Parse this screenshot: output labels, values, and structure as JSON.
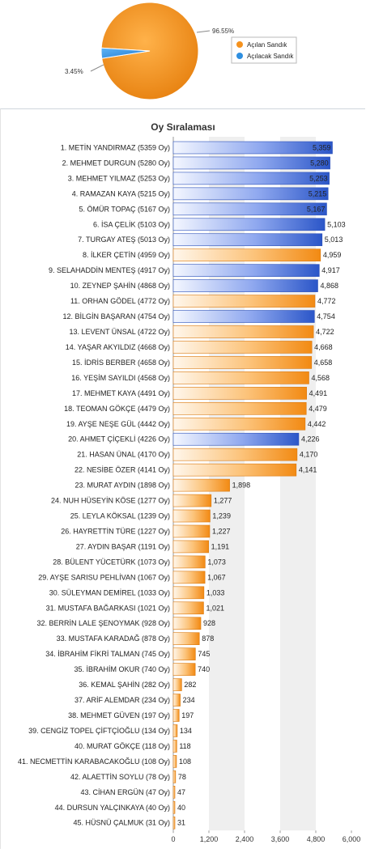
{
  "colors": {
    "opened": "#f5921e",
    "toOpen": "#3a6fd8",
    "grid_band": "#efefef",
    "text": "#222222"
  },
  "chart_data": [
    {
      "type": "pie",
      "slices": [
        {
          "name": "Açılan Sandık",
          "value": 96.55,
          "label": "96.55%",
          "color": "#f5921e"
        },
        {
          "name": "Açılacak Sandık",
          "value": 3.45,
          "label": "3.45%",
          "color": "#2f8fe0"
        }
      ],
      "legend": [
        "Açılan Sandık",
        "Açılacak Sandık"
      ],
      "legend_position": "right"
    },
    {
      "type": "bar",
      "orientation": "horizontal",
      "title": "Oy Sıralaması",
      "xlim": [
        0,
        6000
      ],
      "ticks": [
        "0",
        "1,200",
        "2,400",
        "3,600",
        "4,800",
        "6,000"
      ],
      "categories": [
        "1. METİN YANDIRMAZ (5359 Oy)",
        "2. MEHMET DURGUN (5280 Oy)",
        "3. MEHMET YILMAZ (5253 Oy)",
        "4. RAMAZAN KAYA (5215 Oy)",
        "5. ÖMÜR TOPAÇ (5167 Oy)",
        "6. İSA ÇELİK (5103 Oy)",
        "7. TURGAY ATEŞ (5013 Oy)",
        "8. İLKER ÇETİN (4959 Oy)",
        "9. SELAHADDİN MENTEŞ (4917 Oy)",
        "10. ZEYNEP ŞAHİN (4868 Oy)",
        "11. ORHAN GÖDEL (4772 Oy)",
        "12. BİLGİN BAŞARAN (4754 Oy)",
        "13. LEVENT ÜNSAL (4722 Oy)",
        "14. YAŞAR AKYILDIZ (4668 Oy)",
        "15. İDRİS BERBER (4658 Oy)",
        "16. YEŞİM SAYILDI (4568 Oy)",
        "17. MEHMET KAYA (4491 Oy)",
        "18. TEOMAN GÖKÇE (4479 Oy)",
        "19. AYŞE NEŞE GÜL (4442 Oy)",
        "20. AHMET ÇİÇEKLİ (4226 Oy)",
        "21. HASAN ÜNAL (4170 Oy)",
        "22. NESİBE ÖZER (4141 Oy)",
        "23. MURAT AYDIN (1898 Oy)",
        "24. NUH HÜSEYİN KÖSE (1277 Oy)",
        "25. LEYLA KÖKSAL (1239 Oy)",
        "26. HAYRETTİN TÜRE (1227 Oy)",
        "27. AYDIN BAŞAR (1191 Oy)",
        "28. BÜLENT YÜCETÜRK (1073 Oy)",
        "29. AYŞE SARISU PEHLİVAN (1067 Oy)",
        "30. SÜLEYMAN DEMİREL (1033 Oy)",
        "31. MUSTAFA BAĞARKASI (1021 Oy)",
        "32. BERRİN LALE ŞENOYMAK (928 Oy)",
        "33. MUSTAFA KARADAĞ (878 Oy)",
        "34. İBRAHİM FİKRİ TALMAN (745 Oy)",
        "35. İBRAHİM OKUR (740 Oy)",
        "36. KEMAL ŞAHİN (282 Oy)",
        "37. ARİF ALEMDAR (234 Oy)",
        "38. MEHMET GÜVEN (197 Oy)",
        "39. CENGİZ TOPEL ÇİFTÇİOĞLU (134 Oy)",
        "40. MURAT GÖKÇE (118 Oy)",
        "41. NECMETTİN KARABACAKOĞLU (108 Oy)",
        "42. ALAETTİN SOYLU (78 Oy)",
        "43. CİHAN ERGÜN (47 Oy)",
        "44. DURSUN YALÇINKAYA (40 Oy)",
        "45. HÜSNÜ ÇALMUK (31 Oy)"
      ],
      "values": [
        5359,
        5280,
        5253,
        5215,
        5167,
        5103,
        5013,
        4959,
        4917,
        4868,
        4772,
        4754,
        4722,
        4668,
        4658,
        4568,
        4491,
        4479,
        4442,
        4226,
        4170,
        4141,
        1898,
        1277,
        1239,
        1227,
        1191,
        1073,
        1067,
        1033,
        1021,
        928,
        878,
        745,
        740,
        282,
        234,
        197,
        134,
        118,
        108,
        78,
        47,
        40,
        31
      ],
      "value_labels": [
        "5,359",
        "5,280",
        "5,253",
        "5,215",
        "5,167",
        "5,103",
        "5,013",
        "4,959",
        "4,917",
        "4,868",
        "4,772",
        "4,754",
        "4,722",
        "4,668",
        "4,658",
        "4,568",
        "4,491",
        "4,479",
        "4,442",
        "4,226",
        "4,170",
        "4,141",
        "1,898",
        "1,277",
        "1,239",
        "1,227",
        "1,191",
        "1,073",
        "1,067",
        "1,033",
        "1,021",
        "928",
        "878",
        "745",
        "740",
        "282",
        "234",
        "197",
        "134",
        "118",
        "108",
        "78",
        "47",
        "40",
        "31"
      ],
      "bar_colors": [
        "blue",
        "blue",
        "blue",
        "blue",
        "blue",
        "blue",
        "blue",
        "orange",
        "blue",
        "blue",
        "orange",
        "blue",
        "orange",
        "orange",
        "orange",
        "orange",
        "orange",
        "orange",
        "orange",
        "blue",
        "orange",
        "orange",
        "orange",
        "orange",
        "orange",
        "orange",
        "orange",
        "orange",
        "orange",
        "orange",
        "orange",
        "orange",
        "orange",
        "orange",
        "orange",
        "orange",
        "orange",
        "orange",
        "orange",
        "orange",
        "orange",
        "orange",
        "orange",
        "orange",
        "orange"
      ],
      "grid": true
    }
  ]
}
